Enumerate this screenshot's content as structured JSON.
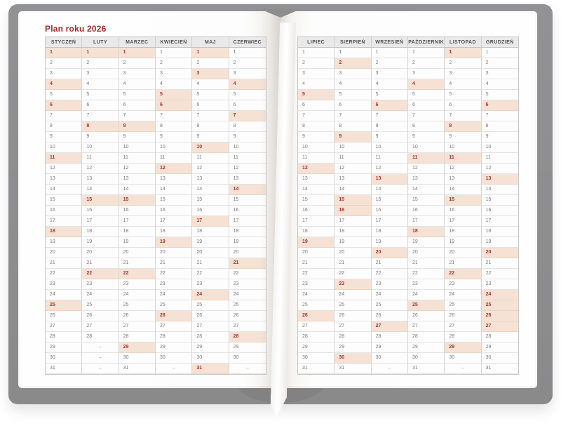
{
  "calendar": {
    "title": "Plan roku 2026",
    "empty_marker": "–",
    "row_count": 31,
    "months": [
      {
        "name": "STYCZEŃ",
        "days": 31,
        "highlighted": [
          1,
          4,
          6,
          11,
          18,
          25
        ]
      },
      {
        "name": "LUTY",
        "days": 28,
        "highlighted": [
          1,
          8,
          15,
          22
        ]
      },
      {
        "name": "MARZEC",
        "days": 31,
        "highlighted": [
          1,
          8,
          15,
          22,
          29
        ]
      },
      {
        "name": "KWIECIEŃ",
        "days": 30,
        "highlighted": [
          5,
          6,
          12,
          19,
          26
        ]
      },
      {
        "name": "MAJ",
        "days": 31,
        "highlighted": [
          1,
          3,
          10,
          17,
          24,
          31
        ]
      },
      {
        "name": "CZERWIEC",
        "days": 30,
        "highlighted": [
          4,
          7,
          14,
          21,
          28
        ]
      },
      {
        "name": "LIPIEC",
        "days": 31,
        "highlighted": [
          5,
          12,
          19,
          26
        ]
      },
      {
        "name": "SIERPIEŃ",
        "days": 31,
        "highlighted": [
          2,
          9,
          15,
          16,
          23,
          30
        ]
      },
      {
        "name": "WRZESIEŃ",
        "days": 30,
        "highlighted": [
          6,
          13,
          20,
          27
        ]
      },
      {
        "name": "PAŹDZIERNIK",
        "days": 31,
        "highlighted": [
          4,
          11,
          18,
          25
        ]
      },
      {
        "name": "LISTOPAD",
        "days": 30,
        "highlighted": [
          1,
          8,
          11,
          15,
          22,
          29
        ]
      },
      {
        "name": "GRUDZIEŃ",
        "days": 31,
        "highlighted": [
          6,
          13,
          20,
          24,
          25,
          26,
          27
        ]
      }
    ],
    "colors": {
      "cover_gray": "#8d8d8e",
      "title_red": "#9f2d28",
      "highlight_bg": "#f6e2d5",
      "highlight_text": "#a73530",
      "header_bg": "#e9e9e9",
      "header_text": "#525252",
      "day_text": "#7b7b7b"
    }
  }
}
